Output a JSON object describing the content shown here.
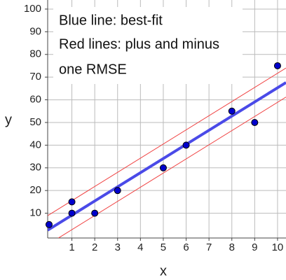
{
  "chart_data": {
    "type": "scatter",
    "x_label": "x",
    "y_label": "y",
    "annotation": [
      "Blue line: best-fit",
      "Red lines: plus and minus",
      "one RMSE"
    ],
    "series": [
      {
        "x": [
          0,
          1,
          1,
          2,
          3,
          5,
          6,
          8,
          9,
          10
        ],
        "values": [
          5,
          10,
          15,
          10,
          20,
          30,
          40,
          55,
          50,
          75
        ],
        "color": "#0000cc"
      }
    ],
    "fit": {
      "slope": 6.24,
      "intercept": 2.9,
      "rmse": 6.4,
      "color": "#4a4ae8",
      "band_color": "#f04040"
    },
    "xlim": [
      -0.06,
      10.37
    ],
    "ylim": [
      -0.93,
      104
    ],
    "xticks": [
      1,
      2,
      3,
      4,
      5,
      6,
      7,
      8,
      9,
      10
    ],
    "yticks": [
      10,
      20,
      30,
      40,
      50,
      60,
      70,
      80,
      90,
      100
    ],
    "grid": true
  }
}
